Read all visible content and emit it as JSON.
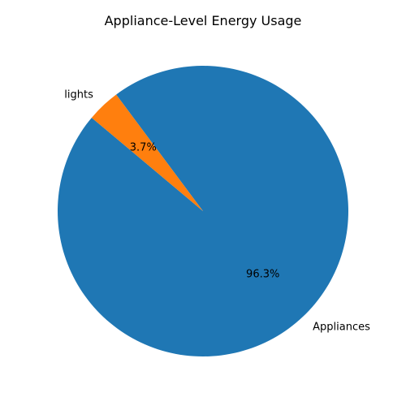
{
  "chart_data": {
    "type": "pie",
    "title": "Appliance-Level Energy Usage",
    "slices": [
      {
        "label": "Appliances",
        "value": 96.3,
        "pct_label": "96.3%",
        "color": "#1f77b4"
      },
      {
        "label": "lights",
        "value": 3.7,
        "pct_label": "3.7%",
        "color": "#ff7f0e"
      }
    ],
    "start_angle_deg": 140,
    "direction": "counterclockwise",
    "legend": "none"
  }
}
